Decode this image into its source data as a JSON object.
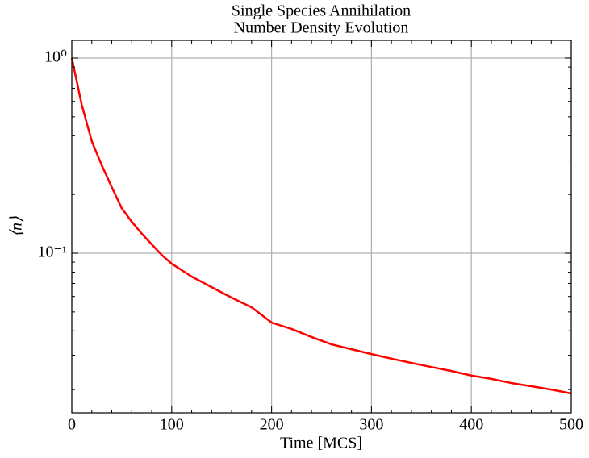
{
  "chart_data": {
    "type": "line",
    "log_y": true,
    "grid": true,
    "title": "Single Species Annihilation",
    "subtitle": "Number Density Evolution",
    "xlabel": "Time [MCS]",
    "ylabel": "⟨n⟩",
    "x": [
      0,
      10,
      20,
      30,
      40,
      50,
      60,
      70,
      80,
      90,
      100,
      120,
      140,
      160,
      180,
      200,
      220,
      240,
      260,
      280,
      300,
      320,
      340,
      360,
      380,
      400,
      420,
      440,
      460,
      480,
      500
    ],
    "series": [
      {
        "color": "#ff0000",
        "values": [
          1.0,
          0.575,
          0.375,
          0.282,
          0.218,
          0.17,
          0.145,
          0.126,
          0.111,
          0.098,
          0.0883,
          0.0759,
          0.067,
          0.0592,
          0.0528,
          0.0441,
          0.0409,
          0.0372,
          0.0341,
          0.0322,
          0.0304,
          0.0288,
          0.0274,
          0.0261,
          0.0249,
          0.0236,
          0.0227,
          0.0216,
          0.0208,
          0.02,
          0.0191
        ]
      }
    ],
    "xlim": [
      0,
      500
    ],
    "ylim": [
      0.0152,
      1.233
    ],
    "xticks": [
      0,
      100,
      200,
      300,
      400,
      500
    ],
    "xminorticks": [
      20,
      40,
      60,
      80,
      120,
      140,
      160,
      180,
      220,
      240,
      260,
      280,
      320,
      340,
      360,
      380,
      420,
      440,
      460,
      480
    ],
    "yticks": [
      {
        "value": 1,
        "label": "10⁰"
      },
      {
        "value": 0.1,
        "label": "10⁻¹"
      }
    ],
    "yminorticks": [
      0.02,
      0.03,
      0.04,
      0.05,
      0.06,
      0.07,
      0.08,
      0.09,
      0.2,
      0.3,
      0.4,
      0.5,
      0.6,
      0.7,
      0.8,
      0.9
    ]
  }
}
